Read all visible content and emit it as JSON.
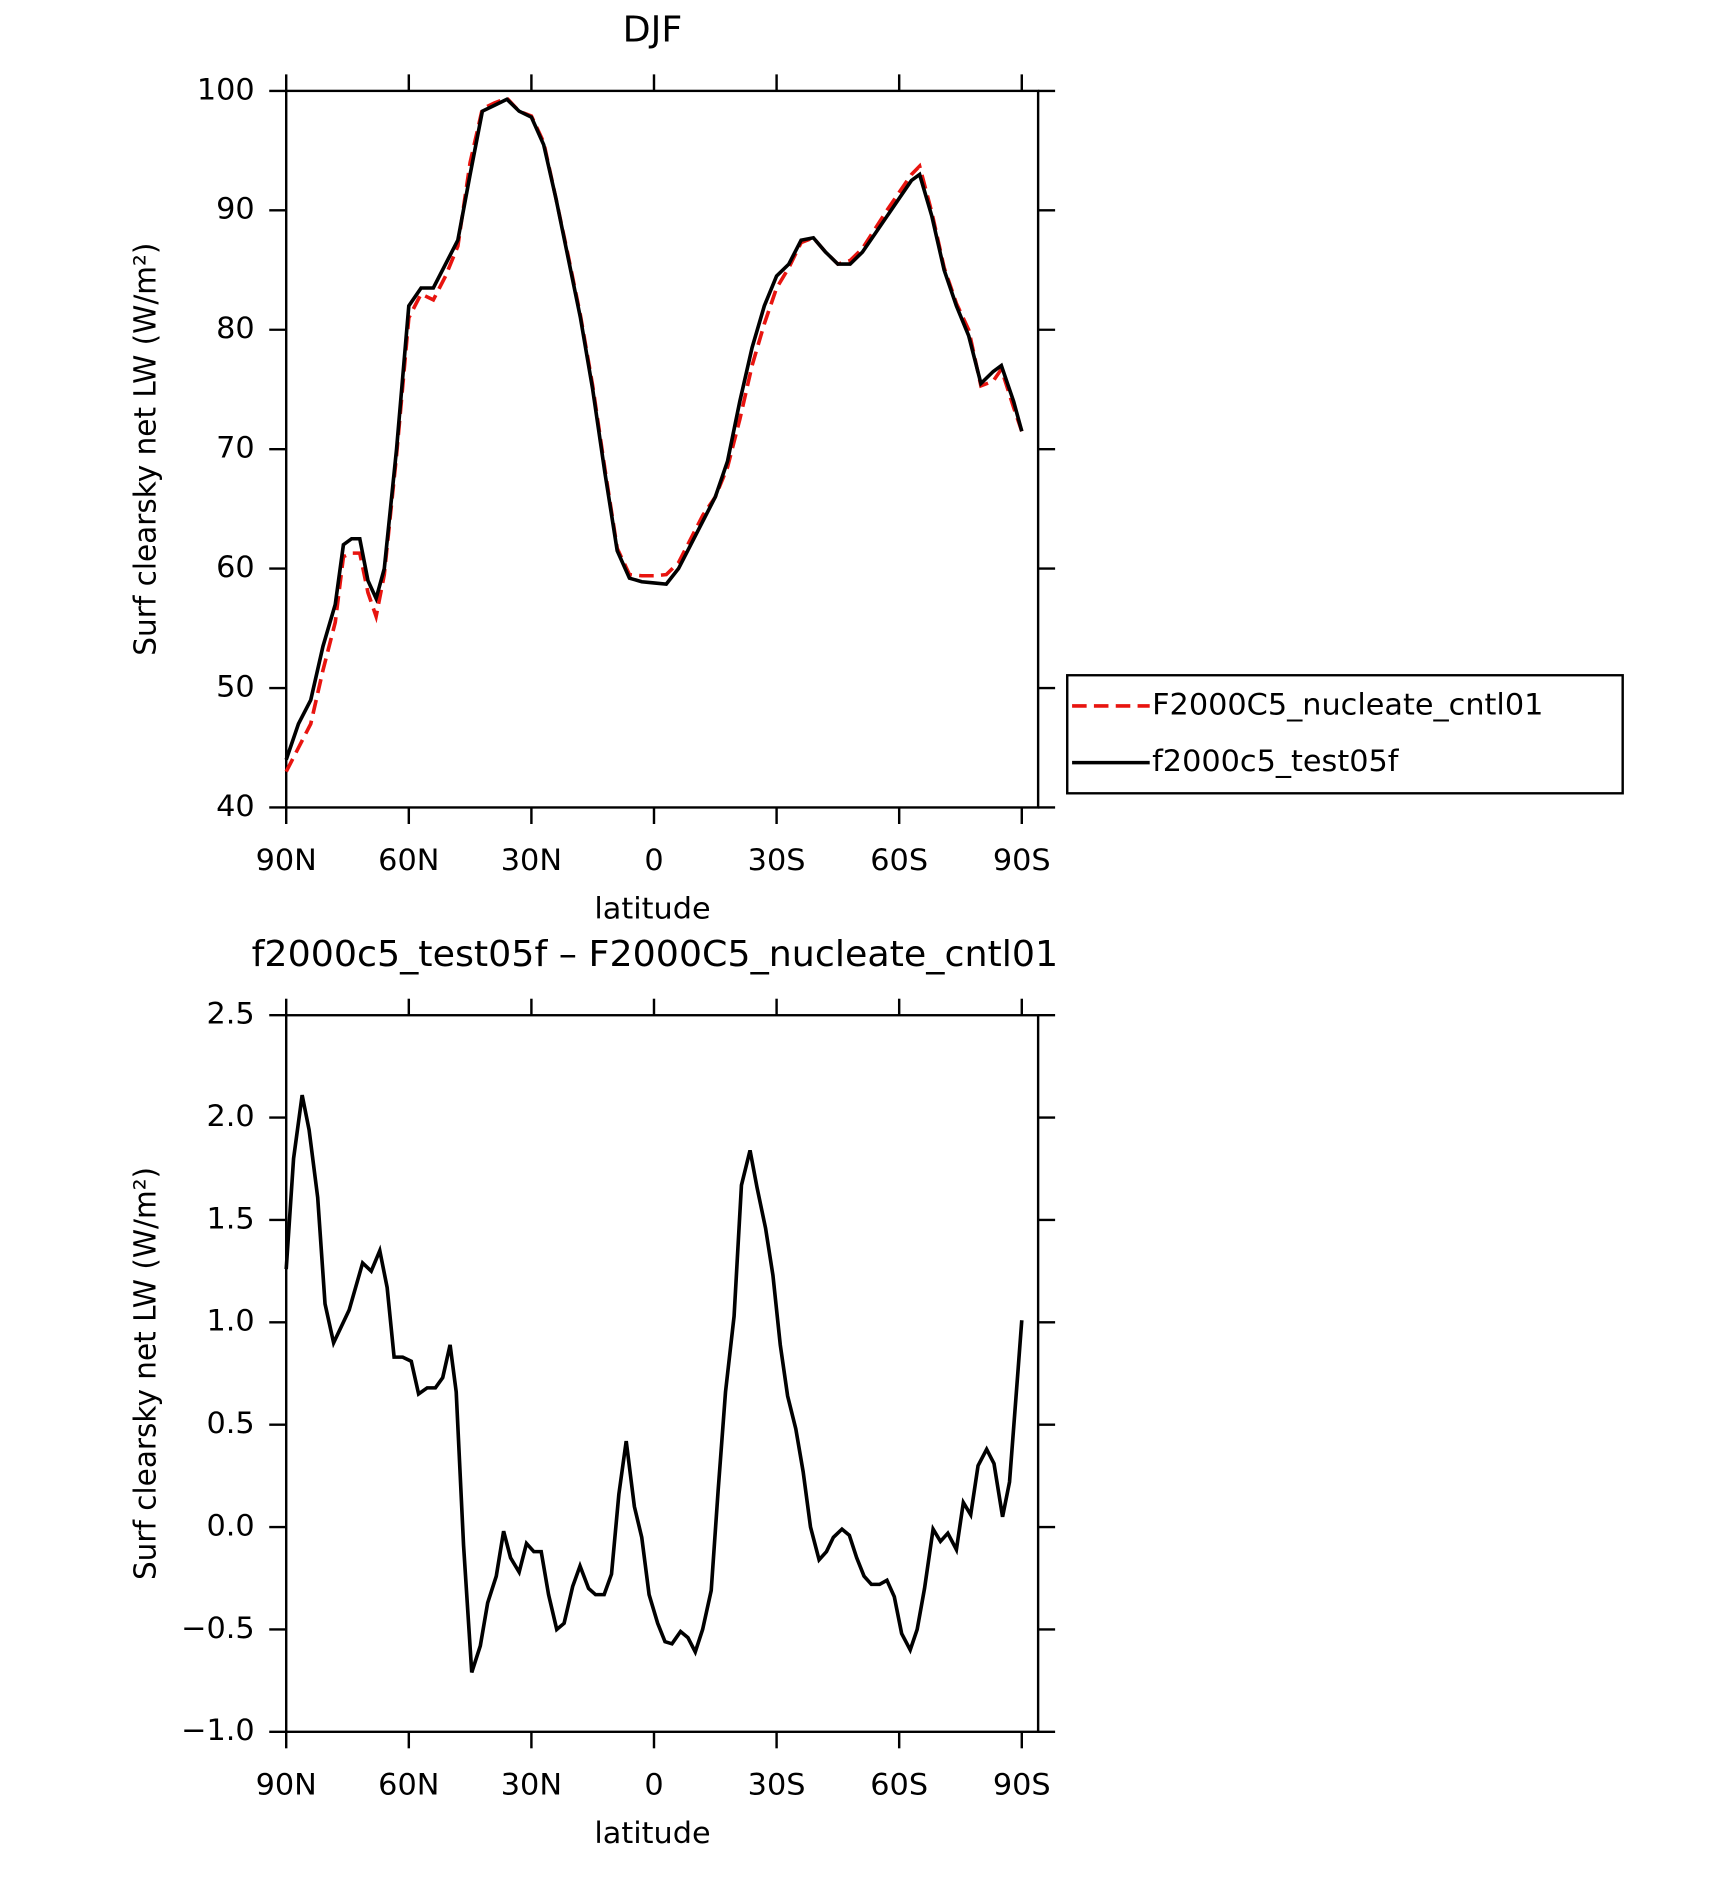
{
  "chart_data": [
    {
      "type": "line",
      "title": "DJF",
      "xlabel": "latitude",
      "ylabel": "Surf clearsky net LW (W/m²)",
      "x": [
        90,
        87,
        84,
        81,
        78,
        76,
        74,
        72,
        70,
        68,
        66,
        63,
        60,
        57,
        54,
        51,
        48,
        45,
        42,
        39,
        36,
        33,
        30,
        27,
        24,
        21,
        18,
        15,
        12,
        9,
        6,
        3,
        0,
        -3,
        -6,
        -9,
        -12,
        -15,
        -18,
        -21,
        -24,
        -27,
        -30,
        -33,
        -36,
        -39,
        -42,
        -45,
        -48,
        -51,
        -54,
        -57,
        -60,
        -63,
        -65,
        -68,
        -71,
        -74,
        -77,
        -80,
        -83,
        -85,
        -88,
        -90
      ],
      "series": [
        {
          "name": "F2000C5_nucleate_cntl01",
          "color": "#e8140f",
          "linestyle": "dashed",
          "values": [
            43,
            45,
            47,
            51.5,
            55.5,
            61,
            61.3,
            61.3,
            58,
            56,
            59.5,
            69.5,
            81,
            83,
            82.5,
            84.5,
            87,
            94,
            98.5,
            99,
            99.4,
            98.3,
            97.9,
            95.7,
            91,
            86.2,
            81.2,
            75.3,
            68.3,
            61.7,
            59.5,
            59.4,
            59.4,
            59.5,
            60.5,
            62.5,
            64.5,
            66,
            68.5,
            72.5,
            77,
            80.5,
            83.5,
            85.2,
            87.3,
            87.7,
            86.5,
            85.5,
            85.8,
            86.8,
            88.4,
            90,
            91.5,
            93,
            93.7,
            89.8,
            85.2,
            82.2,
            80,
            75.3,
            75.7,
            76.7,
            73.5,
            71.5
          ]
        },
        {
          "name": "f2000c5_test05f",
          "color": "#000000",
          "linestyle": "solid",
          "values": [
            44,
            47,
            49,
            53.5,
            57,
            62,
            62.5,
            62.5,
            59,
            57.5,
            60,
            70,
            82,
            83.5,
            83.5,
            85.5,
            87.5,
            93,
            98.3,
            98.8,
            99.3,
            98.3,
            97.8,
            95.5,
            91,
            86,
            81,
            75,
            68,
            61.5,
            59.2,
            58.9,
            58.8,
            58.7,
            60,
            62,
            64,
            66,
            69,
            74,
            78.5,
            82,
            84.5,
            85.5,
            87.5,
            87.7,
            86.5,
            85.5,
            85.5,
            86.5,
            88,
            89.5,
            91,
            92.5,
            93,
            89.5,
            85,
            82,
            79.5,
            75.5,
            76.5,
            77,
            74,
            71.5
          ]
        }
      ],
      "xlim": [
        90,
        -94
      ],
      "ylim": [
        40,
        100
      ],
      "xticks": [
        {
          "value": 90,
          "label": "90N"
        },
        {
          "value": 60,
          "label": "60N"
        },
        {
          "value": 30,
          "label": "30N"
        },
        0,
        {
          "value": -30,
          "label": "30S"
        },
        {
          "value": -60,
          "label": "60S"
        },
        {
          "value": -90,
          "label": "90S"
        }
      ],
      "yticks": [
        40,
        50,
        60,
        70,
        80,
        90,
        100
      ],
      "legend": "right"
    },
    {
      "type": "line",
      "title": "f2000c5_test05f – F2000C5_nucleate_cntl01",
      "xlabel": "latitude",
      "ylabel": "Surf clearsky net LW (W/m²)",
      "x": [
        90,
        88.2,
        86.1,
        84.4,
        82.3,
        80.5,
        78.4,
        74.6,
        71.3,
        69.2,
        67.1,
        65.3,
        63.6,
        61.5,
        59.4,
        57.6,
        55.5,
        53.5,
        51.7,
        49.9,
        48.4,
        46.6,
        44.6,
        42.5,
        40.7,
        38.6,
        36.8,
        35.1,
        33.0,
        31.2,
        29.4,
        27.6,
        25.8,
        23.8,
        22.0,
        19.9,
        18.1,
        16.0,
        14.3,
        12.2,
        10.4,
        8.6,
        6.8,
        4.8,
        3.0,
        1.2,
        -0.9,
        -2.7,
        -4.4,
        -6.5,
        -8.3,
        -10.1,
        -11.9,
        -14.0,
        -15.7,
        -17.5,
        -19.6,
        -21.4,
        -23.5,
        -25.2,
        -27.3,
        -29.1,
        -30.9,
        -32.7,
        -34.7,
        -36.5,
        -38.3,
        -40.4,
        -42.2,
        -43.9,
        -46.0,
        -47.8,
        -49.6,
        -51.4,
        -53.2,
        -55.2,
        -57.0,
        -58.8,
        -60.6,
        -62.7,
        -64.4,
        -66.2,
        -68.3,
        -70.1,
        -71.9,
        -74.0,
        -75.7,
        -77.5,
        -79.3,
        -81.4,
        -83.2,
        -85.3,
        -87.0,
        -89.1,
        -90
      ],
      "series": [
        {
          "name": "f2000c5_test05f – F2000C5_nucleate_cntl01",
          "color": "#000000",
          "linestyle": "solid",
          "values": [
            1.26,
            1.8,
            2.11,
            1.94,
            1.61,
            1.09,
            0.9,
            1.06,
            1.29,
            1.25,
            1.35,
            1.17,
            0.83,
            0.83,
            0.81,
            0.65,
            0.68,
            0.68,
            0.73,
            0.89,
            0.66,
            -0.09,
            -0.71,
            -0.58,
            -0.37,
            -0.24,
            -0.02,
            -0.15,
            -0.22,
            -0.08,
            -0.12,
            -0.12,
            -0.33,
            -0.5,
            -0.47,
            -0.29,
            -0.19,
            -0.3,
            -0.33,
            -0.33,
            -0.23,
            0.16,
            0.42,
            0.1,
            -0.05,
            -0.33,
            -0.47,
            -0.56,
            -0.57,
            -0.51,
            -0.54,
            -0.61,
            -0.5,
            -0.31,
            0.18,
            0.66,
            1.03,
            1.67,
            1.84,
            1.66,
            1.46,
            1.23,
            0.89,
            0.64,
            0.48,
            0.27,
            0,
            -0.16,
            -0.12,
            -0.05,
            -0.01,
            -0.04,
            -0.15,
            -0.24,
            -0.28,
            -0.28,
            -0.26,
            -0.34,
            -0.52,
            -0.6,
            -0.5,
            -0.3,
            -0.01,
            -0.07,
            -0.03,
            -0.11,
            0.12,
            0.06,
            0.3,
            0.38,
            0.31,
            0.05,
            0.22,
            0.77,
            1.01
          ]
        }
      ],
      "xlim": [
        90,
        -94
      ],
      "ylim": [
        -1,
        2.5
      ],
      "xticks": [
        {
          "value": 90,
          "label": "90N"
        },
        {
          "value": 60,
          "label": "60N"
        },
        {
          "value": 30,
          "label": "30N"
        },
        0,
        {
          "value": -30,
          "label": "30S"
        },
        {
          "value": -60,
          "label": "60S"
        },
        {
          "value": -90,
          "label": "90S"
        }
      ],
      "yticks": [
        {
          "value": -1,
          "label": "−1.0"
        },
        {
          "value": -0.5,
          "label": "−0.5"
        },
        {
          "value": 0,
          "label": "0.0"
        },
        0.5,
        {
          "value": 1,
          "label": "1.0"
        },
        1.5,
        {
          "value": 2,
          "label": "2.0"
        },
        2.5
      ]
    }
  ]
}
